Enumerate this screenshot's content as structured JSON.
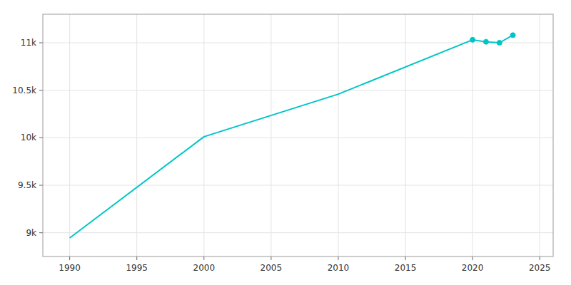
{
  "chart_data": {
    "type": "line",
    "series": [
      {
        "x": [
          1990,
          2000,
          2010,
          2020,
          2021,
          2022,
          2023
        ],
        "values": [
          8945,
          10011,
          10459,
          11031,
          11010,
          11000,
          11080
        ],
        "color": "#00C5C8",
        "line_style": "solid"
      },
      {
        "x": [
          2020,
          2021,
          2022,
          2023
        ],
        "values": [
          11031,
          11010,
          11000,
          11080
        ],
        "color": "#00C5C8",
        "marker": "circle",
        "line_style": "none"
      }
    ],
    "xlim": [
      1988,
      2026
    ],
    "ylim": [
      8750,
      11300
    ],
    "xticks": [
      1990,
      1995,
      2000,
      2005,
      2010,
      2015,
      2020,
      2025
    ],
    "yticks": [
      {
        "value": 9000,
        "label": "9k"
      },
      {
        "value": 9500,
        "label": "9.5k"
      },
      {
        "value": 10000,
        "label": "10k"
      },
      {
        "value": 10500,
        "label": "10.5k"
      },
      {
        "value": 11000,
        "label": "11k"
      }
    ],
    "grid": true
  }
}
